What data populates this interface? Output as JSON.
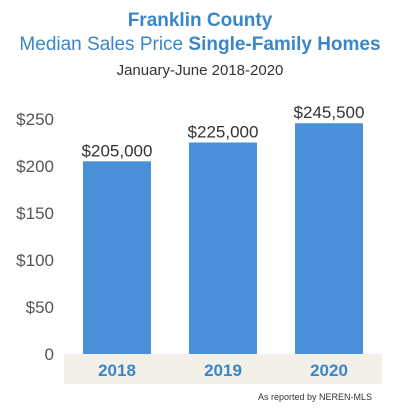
{
  "title": "Franklin County",
  "subtitle_regular": "Median Sales Price",
  "subtitle_bold": "Single-Family Homes",
  "date_range": "January-June 2018-2020",
  "source_note": "As reported by NEREN-MLS",
  "chart_data": {
    "type": "bar",
    "categories": [
      "2018",
      "2019",
      "2020"
    ],
    "values": [
      205000,
      225000,
      245500
    ],
    "value_labels": [
      "$205,000",
      "$225,000",
      "$245,500"
    ],
    "ylim": [
      0,
      250000
    ],
    "y_ticks": [
      0,
      50000,
      100000,
      150000,
      200000,
      250000
    ],
    "y_tick_labels": [
      "0",
      "$50",
      "$100",
      "$150",
      "$200",
      "$250"
    ],
    "grid": false,
    "bar_color": "#4a90d9",
    "axis_band_color": "#f3efe9",
    "category_label_color": "#3a86c8"
  }
}
